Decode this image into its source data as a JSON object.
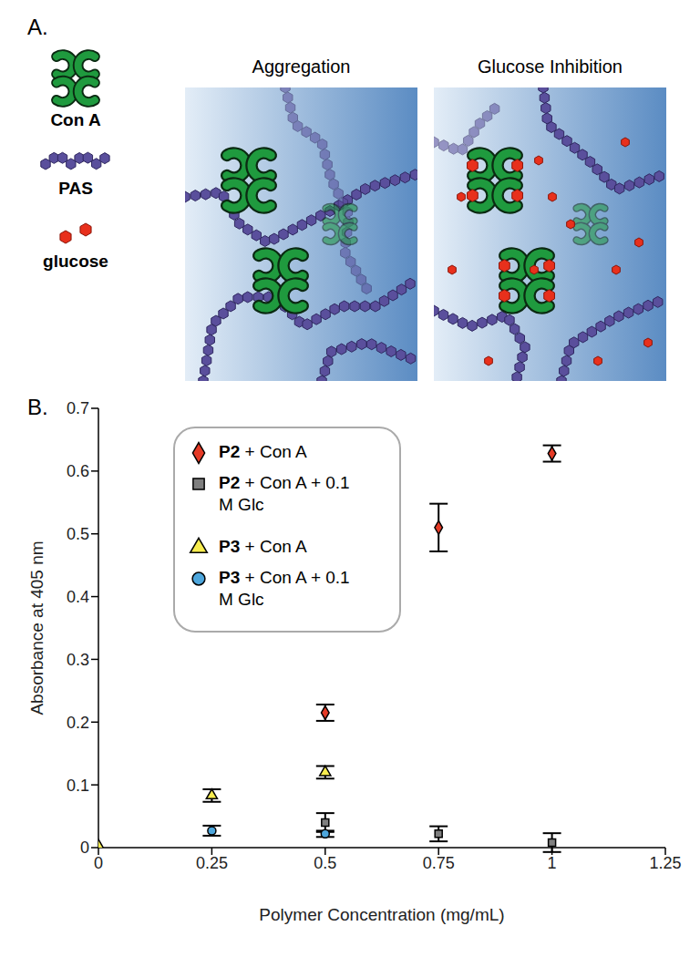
{
  "figure": {
    "label": "A.",
    "key": [
      {
        "label": "Con A"
      },
      {
        "label": "PAS"
      },
      {
        "label": "glucose"
      }
    ],
    "panels": [
      {
        "title": "Aggregation"
      },
      {
        "title": "Glucose Inhibition"
      }
    ]
  },
  "chart_data": {
    "type": "scatter",
    "title": "B.",
    "x_label": "Polymer Concentration (mg/mL)",
    "y_label": "Absorbance at 405 nm",
    "xlim": [
      0,
      1.25
    ],
    "xticks": [
      0,
      0.25,
      0.5,
      0.75,
      1,
      1.25
    ],
    "ylim": [
      0,
      0.7
    ],
    "yticks": [
      0,
      0.1,
      0.2,
      0.3,
      0.4,
      0.5,
      0.6,
      0.7
    ],
    "grid": false,
    "legend": "upper left",
    "series": [
      {
        "name": "P2 + Con A",
        "color": "#e53a26",
        "marker": "diamond",
        "x": [
          0,
          0.5,
          0.75,
          1
        ],
        "values": [
          0,
          0.215,
          0.51,
          0.628
        ],
        "errors": [
          0,
          0.013,
          0.038,
          0.013
        ]
      },
      {
        "name": "P2 + Con A + 0.1 M Glc",
        "color": "#7f7f7f",
        "marker": "square",
        "x": [
          0.5,
          0.75,
          1
        ],
        "values": [
          0.04,
          0.022,
          0.008
        ],
        "errors": [
          0.015,
          0.012,
          0.015
        ]
      },
      {
        "name": "P3 + Con A",
        "color": "#f7ec4f",
        "marker": "triangle",
        "x": [
          0,
          0.25,
          0.5
        ],
        "values": [
          0.003,
          0.083,
          0.12
        ],
        "errors": [
          0,
          0.01,
          0.01
        ]
      },
      {
        "name": "P3 + Con A + 0.1 M Glc",
        "color": "#4da6dc",
        "marker": "circle",
        "x": [
          0.25,
          0.5
        ],
        "values": [
          0.027,
          0.022
        ],
        "errors": [
          0.008,
          0.005
        ]
      }
    ]
  }
}
